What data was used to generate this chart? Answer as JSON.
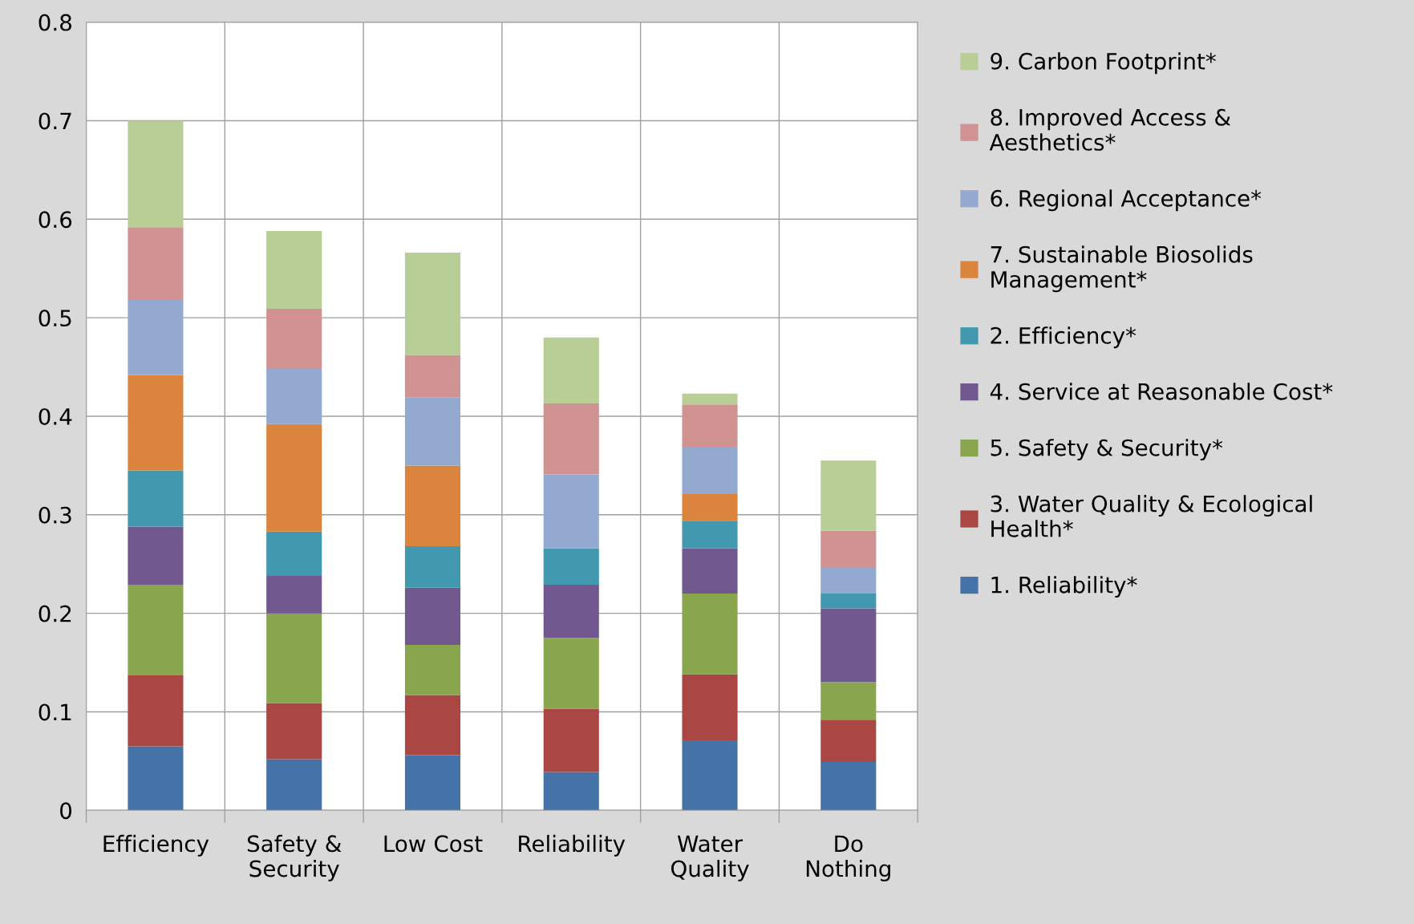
{
  "chart_data": {
    "type": "bar",
    "stacked": true,
    "categories": [
      "Efficiency",
      "Safety &\nSecurity",
      "Low Cost",
      "Reliability",
      "Water\nQuality",
      "Do\nNothing"
    ],
    "series": [
      {
        "name": "1. Reliability*",
        "color": "#4572a7",
        "values": [
          0.065,
          0.052,
          0.056,
          0.039,
          0.071,
          0.049
        ]
      },
      {
        "name": "3. Water Quality & Ecological\nHealth*",
        "color": "#aa4643",
        "values": [
          0.072,
          0.057,
          0.061,
          0.064,
          0.067,
          0.043
        ]
      },
      {
        "name": "5. Safety & Security*",
        "color": "#89a54e",
        "values": [
          0.092,
          0.091,
          0.051,
          0.072,
          0.082,
          0.038
        ]
      },
      {
        "name": "4. Service at Reasonable Cost*",
        "color": "#71588f",
        "values": [
          0.059,
          0.038,
          0.058,
          0.054,
          0.046,
          0.075
        ]
      },
      {
        "name": "2. Efficiency*",
        "color": "#4198af",
        "values": [
          0.057,
          0.045,
          0.042,
          0.037,
          0.028,
          0.015
        ]
      },
      {
        "name": "7. Sustainable Biosolids\nManagement*",
        "color": "#db843d",
        "values": [
          0.097,
          0.109,
          0.082,
          0,
          0.027,
          0
        ]
      },
      {
        "name": "6. Regional Acceptance*",
        "color": "#93a9cf",
        "values": [
          0.076,
          0.056,
          0.069,
          0.075,
          0.048,
          0.027
        ]
      },
      {
        "name": "8. Improved Access &\nAesthetics*",
        "color": "#d19392",
        "values": [
          0.074,
          0.061,
          0.043,
          0.072,
          0.043,
          0.037
        ]
      },
      {
        "name": "9. Carbon Footprint*",
        "color": "#b9cd96",
        "values": [
          0.108,
          0.079,
          0.104,
          0.067,
          0.011,
          0.071
        ]
      }
    ],
    "ylim": [
      0,
      0.8
    ],
    "yticks": [
      {
        "value": 0,
        "label": "0"
      },
      0.1,
      0.2,
      0.3,
      0.4,
      0.5,
      0.6,
      0.7,
      0.8
    ],
    "grid": true,
    "legend": "right"
  }
}
